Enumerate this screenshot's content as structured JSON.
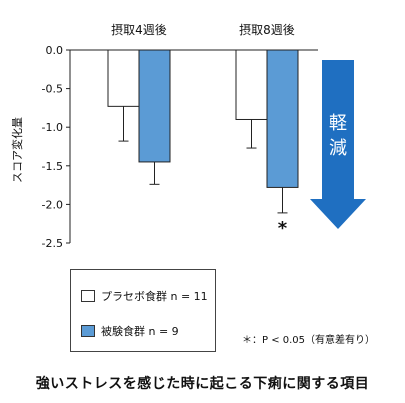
{
  "chart_data": {
    "type": "bar",
    "categories": [
      "摂取4週後",
      "摂取8週後"
    ],
    "series": [
      {
        "name": "プラセボ食群 n = 11",
        "values": [
          -0.73,
          -0.9
        ],
        "error": [
          0.45,
          0.37
        ],
        "color": "#ffffff"
      },
      {
        "name": "被験食群 n = 9",
        "values": [
          -1.45,
          -1.78
        ],
        "error": [
          0.29,
          0.33
        ],
        "color": "#5b9bd5"
      }
    ],
    "ylabel": "スコア変化量",
    "ylim": [
      -2.5,
      0
    ],
    "yticks": [
      "0.0",
      "-0.5",
      "-1.0",
      "-1.5",
      "-2.0",
      "-2.5"
    ],
    "significance_marker": "*",
    "arrow_label": [
      "軽",
      "減"
    ],
    "arrow_color": "#1f6fc1",
    "legend_placement": "bottom-left"
  },
  "legend": {
    "items": [
      "プラセボ食群 n = 11",
      "被験食群 n = 9"
    ],
    "note": "＊：P < 0.05（有意差有り）"
  },
  "footer_title": "強いストレスを感じた時に起こる下痢に関する項目"
}
